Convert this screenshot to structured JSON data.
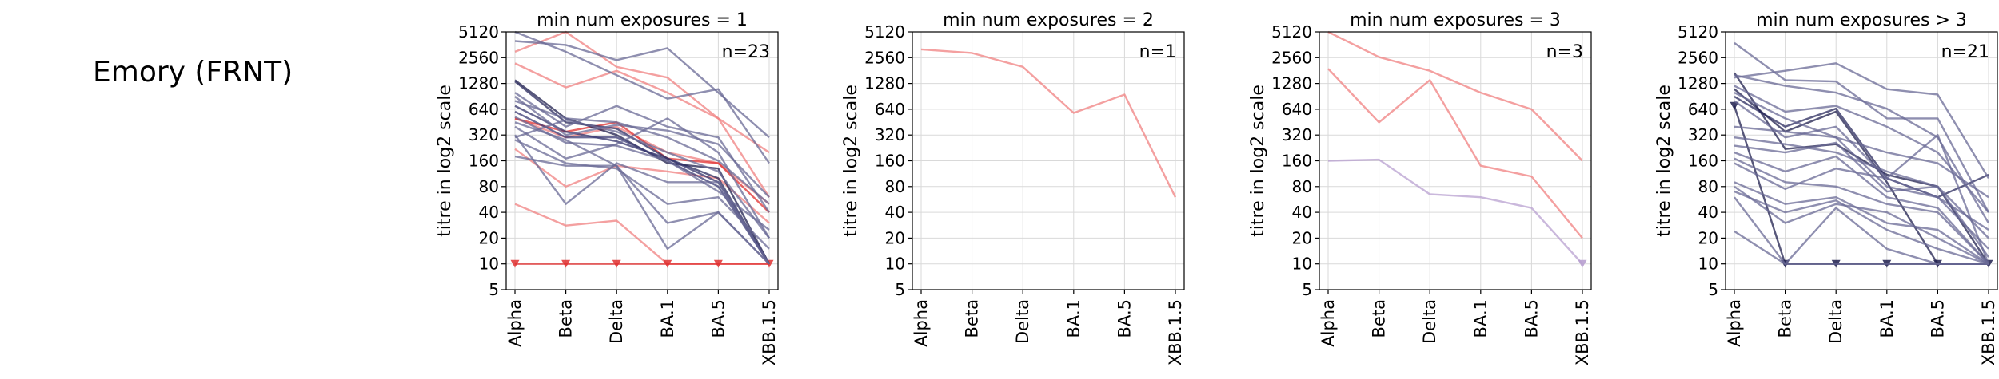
{
  "row_label": "Emory (FRNT)",
  "chart_data": [
    {
      "type": "line",
      "title": "min num exposures = 1",
      "ylabel": "titre in log2 scale",
      "xlabel": "",
      "categories": [
        "Alpha",
        "Beta",
        "Delta",
        "BA.1",
        "BA.5",
        "XBB.1.5"
      ],
      "y_scale": "log2",
      "yticks": [
        5,
        10,
        20,
        40,
        80,
        160,
        320,
        640,
        1280,
        2560,
        5120
      ],
      "ylim": [
        5,
        5120
      ],
      "grid": true,
      "annotation": "n=23",
      "series": [
        {
          "color": "#f08080",
          "values": [
            3000,
            5120,
            2000,
            1500,
            500,
            200
          ]
        },
        {
          "color": "#f08080",
          "values": [
            2200,
            1150,
            1800,
            1000,
            500,
            60
          ]
        },
        {
          "color": "#f08080",
          "values": [
            500,
            300,
            400,
            200,
            150,
            50
          ]
        },
        {
          "color": "#f08080",
          "values": [
            220,
            80,
            140,
            120,
            100,
            30
          ]
        },
        {
          "color": "#f08080",
          "values": [
            50,
            28,
            32,
            10,
            10,
            10
          ]
        },
        {
          "color": "#e03030",
          "values": [
            10,
            10,
            10,
            10,
            10,
            10
          ],
          "markers": "triangle"
        },
        {
          "color": "#e03030",
          "values": [
            500,
            350,
            450,
            170,
            150,
            40
          ]
        },
        {
          "color": "#1f1f4e",
          "values": [
            1400,
            500,
            320,
            150,
            130,
            10
          ]
        },
        {
          "color": "#2a2a5e",
          "values": [
            1350,
            450,
            380,
            170,
            100,
            10
          ]
        },
        {
          "color": "#33336b",
          "values": [
            700,
            350,
            270,
            170,
            90,
            10
          ]
        },
        {
          "color": "#3b3b74",
          "values": [
            600,
            300,
            300,
            160,
            80,
            10
          ]
        },
        {
          "color": "#6a6a96",
          "values": [
            4000,
            3600,
            2400,
            3300,
            1000,
            300
          ]
        },
        {
          "color": "#6a6a96",
          "values": [
            5120,
            3000,
            1600,
            850,
            1100,
            150
          ]
        },
        {
          "color": "#6a6a96",
          "values": [
            1000,
            400,
            700,
            400,
            300,
            40
          ]
        },
        {
          "color": "#6a6a96",
          "values": [
            400,
            170,
            250,
            500,
            200,
            20
          ]
        },
        {
          "color": "#6a6a96",
          "values": [
            320,
            50,
            150,
            90,
            90,
            10
          ]
        },
        {
          "color": "#6a6a96",
          "values": [
            280,
            150,
            130,
            50,
            60,
            15
          ]
        },
        {
          "color": "#6a6a96",
          "values": [
            800,
            500,
            450,
            300,
            160,
            50
          ]
        },
        {
          "color": "#6a6a96",
          "values": [
            450,
            280,
            140,
            30,
            40,
            10
          ]
        },
        {
          "color": "#6a6a96",
          "values": [
            180,
            140,
            140,
            15,
            40,
            10
          ]
        },
        {
          "color": "#6a6a96",
          "values": [
            300,
            480,
            350,
            200,
            120,
            20
          ]
        },
        {
          "color": "#6a6a96",
          "values": [
            520,
            260,
            240,
            160,
            70,
            25
          ]
        },
        {
          "color": "#6a6a96",
          "values": [
            900,
            320,
            420,
            360,
            250,
            60
          ]
        }
      ]
    },
    {
      "type": "line",
      "title": "min num exposures = 2",
      "ylabel": "titre in log2 scale",
      "xlabel": "",
      "categories": [
        "Alpha",
        "Beta",
        "Delta",
        "BA.1",
        "BA.5",
        "XBB.1.5"
      ],
      "y_scale": "log2",
      "yticks": [
        5,
        10,
        20,
        40,
        80,
        160,
        320,
        640,
        1280,
        2560,
        5120
      ],
      "ylim": [
        5,
        5120
      ],
      "grid": true,
      "annotation": "n=1",
      "series": [
        {
          "color": "#f08080",
          "values": [
            3200,
            2900,
            2000,
            580,
            950,
            60
          ]
        }
      ]
    },
    {
      "type": "line",
      "title": "min num exposures = 3",
      "ylabel": "titre in log2 scale",
      "xlabel": "",
      "categories": [
        "Alpha",
        "Beta",
        "Delta",
        "BA.1",
        "BA.5",
        "XBB.1.5"
      ],
      "y_scale": "log2",
      "yticks": [
        5,
        10,
        20,
        40,
        80,
        160,
        320,
        640,
        1280,
        2560,
        5120
      ],
      "ylim": [
        5,
        5120
      ],
      "grid": true,
      "annotation": "n=3",
      "series": [
        {
          "color": "#f08080",
          "values": [
            5120,
            2600,
            1800,
            1000,
            640,
            160
          ]
        },
        {
          "color": "#f08080",
          "values": [
            1900,
            450,
            1400,
            140,
            105,
            20
          ]
        },
        {
          "color": "#b8a0d0",
          "values": [
            160,
            165,
            65,
            60,
            45,
            10
          ],
          "end_marker": "triangle"
        }
      ]
    },
    {
      "type": "line",
      "title": "min num exposures > 3",
      "ylabel": "titre in log2 scale",
      "xlabel": "",
      "categories": [
        "Alpha",
        "Beta",
        "Delta",
        "BA.1",
        "BA.5",
        "XBB.1.5"
      ],
      "y_scale": "log2",
      "yticks": [
        5,
        10,
        20,
        40,
        80,
        160,
        320,
        640,
        1280,
        2560,
        5120
      ],
      "ylim": [
        5,
        5120
      ],
      "grid": true,
      "annotation": "n=21",
      "series": [
        {
          "color": "#1f1f4e",
          "values": [
            1700,
            220,
            250,
            110,
            80,
            10
          ]
        },
        {
          "color": "#1f1f4e",
          "values": [
            1100,
            350,
            600,
            90,
            10,
            10
          ]
        },
        {
          "color": "#1f1f4e",
          "values": [
            700,
            10,
            10,
            10,
            10,
            10
          ],
          "markers": "triangle"
        },
        {
          "color": "#2a2a5e",
          "values": [
            900,
            400,
            650,
            100,
            60,
            110
          ]
        },
        {
          "color": "#6a6a96",
          "values": [
            3800,
            1400,
            1350,
            500,
            500,
            40
          ]
        },
        {
          "color": "#6a6a96",
          "values": [
            1500,
            1800,
            2200,
            1100,
            950,
            100
          ]
        },
        {
          "color": "#6a6a96",
          "values": [
            1600,
            1200,
            1000,
            650,
            300,
            30
          ]
        },
        {
          "color": "#6a6a96",
          "values": [
            1200,
            600,
            700,
            400,
            200,
            40
          ]
        },
        {
          "color": "#6a6a96",
          "values": [
            800,
            300,
            400,
            100,
            320,
            10
          ]
        },
        {
          "color": "#6a6a96",
          "values": [
            400,
            350,
            300,
            80,
            60,
            25
          ]
        },
        {
          "color": "#6a6a96",
          "values": [
            240,
            200,
            260,
            70,
            80,
            12
          ]
        },
        {
          "color": "#6a6a96",
          "values": [
            200,
            120,
            180,
            60,
            45,
            10
          ]
        },
        {
          "color": "#6a6a96",
          "values": [
            170,
            90,
            80,
            50,
            40,
            10
          ]
        },
        {
          "color": "#6a6a96",
          "values": [
            90,
            50,
            60,
            30,
            25,
            10
          ]
        },
        {
          "color": "#6a6a96",
          "values": [
            70,
            40,
            55,
            25,
            15,
            10
          ]
        },
        {
          "color": "#6a6a96",
          "values": [
            24,
            10,
            45,
            15,
            10,
            10
          ]
        },
        {
          "color": "#6a6a96",
          "values": [
            80,
            30,
            50,
            40,
            20,
            10
          ]
        },
        {
          "color": "#6a6a96",
          "values": [
            150,
            75,
            130,
            100,
            60,
            15
          ]
        },
        {
          "color": "#6a6a96",
          "values": [
            300,
            250,
            200,
            120,
            80,
            20
          ]
        },
        {
          "color": "#6a6a96",
          "values": [
            1000,
            500,
            300,
            200,
            150,
            60
          ]
        },
        {
          "color": "#6a6a96",
          "values": [
            60,
            10,
            10,
            10,
            10,
            10
          ]
        }
      ]
    }
  ]
}
